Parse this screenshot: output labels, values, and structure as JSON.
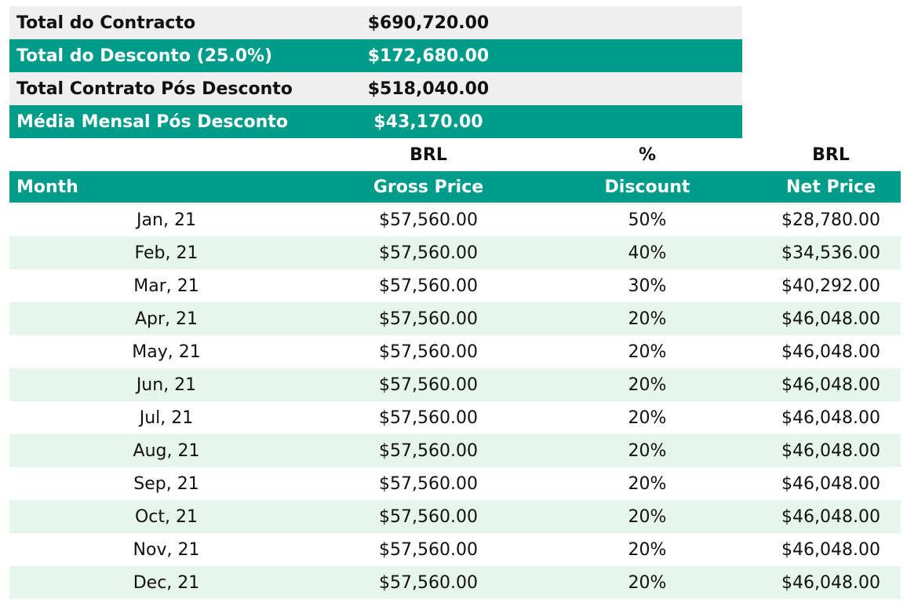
{
  "summary": [
    {
      "label": "Total do Contracto",
      "value": "$690,720.00",
      "style": "gray"
    },
    {
      "label": "Total do Desconto (25.0%)",
      "value": "$172,680.00",
      "style": "teal"
    },
    {
      "label": "Total Contrato Pós Desconto",
      "value": "$518,040.00",
      "style": "gray"
    },
    {
      "label": "Média Mensal Pós Desconto",
      "value": "$43,170.00",
      "style": "teal"
    }
  ],
  "units": {
    "gross": "BRL",
    "discount": "%",
    "net": "BRL"
  },
  "headers": {
    "month": "Month",
    "gross": "Gross Price",
    "discount": "Discount",
    "net": "Net Price"
  },
  "rows": [
    {
      "month": "Jan, 21",
      "gross": "$57,560.00",
      "discount": "50%",
      "net": "$28,780.00"
    },
    {
      "month": "Feb, 21",
      "gross": "$57,560.00",
      "discount": "40%",
      "net": "$34,536.00"
    },
    {
      "month": "Mar, 21",
      "gross": "$57,560.00",
      "discount": "30%",
      "net": "$40,292.00"
    },
    {
      "month": "Apr, 21",
      "gross": "$57,560.00",
      "discount": "20%",
      "net": "$46,048.00"
    },
    {
      "month": "May, 21",
      "gross": "$57,560.00",
      "discount": "20%",
      "net": "$46,048.00"
    },
    {
      "month": "Jun, 21",
      "gross": "$57,560.00",
      "discount": "20%",
      "net": "$46,048.00"
    },
    {
      "month": "Jul, 21",
      "gross": "$57,560.00",
      "discount": "20%",
      "net": "$46,048.00"
    },
    {
      "month": "Aug, 21",
      "gross": "$57,560.00",
      "discount": "20%",
      "net": "$46,048.00"
    },
    {
      "month": "Sep, 21",
      "gross": "$57,560.00",
      "discount": "20%",
      "net": "$46,048.00"
    },
    {
      "month": "Oct, 21",
      "gross": "$57,560.00",
      "discount": "20%",
      "net": "$46,048.00"
    },
    {
      "month": "Nov, 21",
      "gross": "$57,560.00",
      "discount": "20%",
      "net": "$46,048.00"
    },
    {
      "month": "Dec, 21",
      "gross": "$57,560.00",
      "discount": "20%",
      "net": "$46,048.00"
    }
  ],
  "colors": {
    "teal": "#009c8a",
    "gray_row": "#efefef",
    "stripe": "#e6f6ec"
  }
}
